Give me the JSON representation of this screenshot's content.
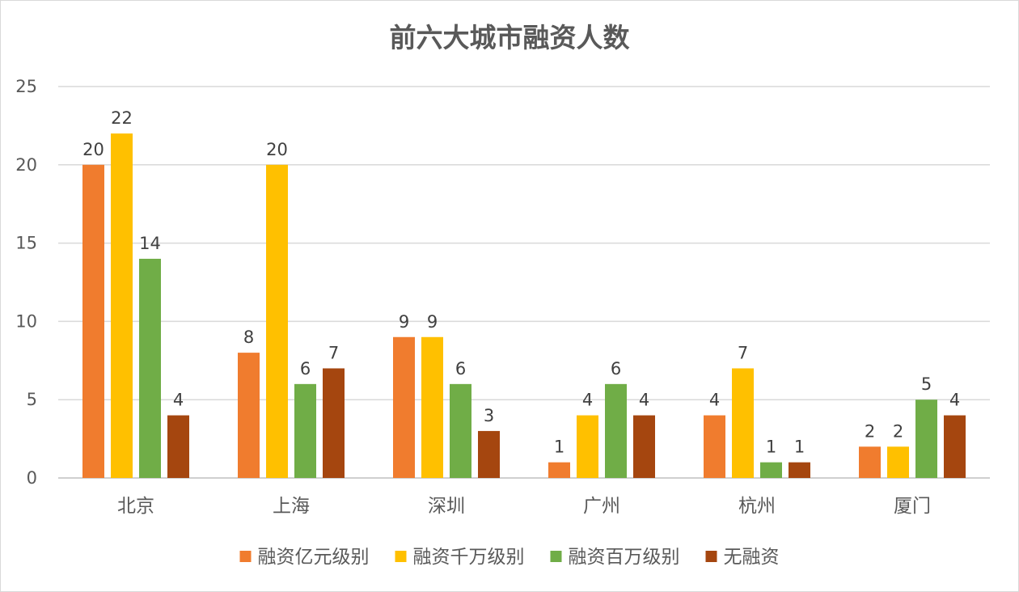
{
  "chart_data": {
    "type": "bar",
    "title": "前六大城市融资人数",
    "xlabel": "",
    "ylabel": "",
    "ylim": [
      0,
      25
    ],
    "yticks": [
      0,
      5,
      10,
      15,
      20,
      25
    ],
    "grid": true,
    "legend_position": "bottom",
    "categories": [
      "北京",
      "上海",
      "深圳",
      "广州",
      "杭州",
      "厦门"
    ],
    "series": [
      {
        "name": "融资亿元级别",
        "color": "#f07c2e",
        "values": [
          20,
          8,
          9,
          1,
          4,
          2
        ]
      },
      {
        "name": "融资千万级别",
        "color": "#ffc000",
        "values": [
          22,
          20,
          9,
          4,
          7,
          2
        ]
      },
      {
        "name": "融资百万级别",
        "color": "#70ad47",
        "values": [
          14,
          6,
          6,
          6,
          1,
          5
        ]
      },
      {
        "name": "无融资",
        "color": "#a5460f",
        "values": [
          4,
          7,
          3,
          4,
          1,
          4
        ]
      }
    ]
  }
}
